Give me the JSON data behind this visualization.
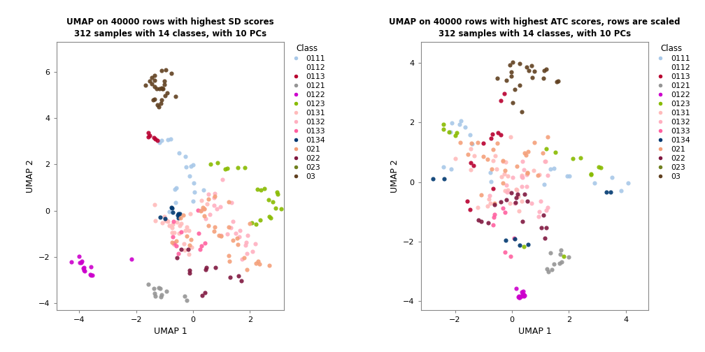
{
  "title1": "UMAP on 40000 rows with highest SD scores\n312 samples with 14 classes, with 10 PCs",
  "title2": "UMAP on 40000 rows with highest ATC scores, rows are scaled\n312 samples with 14 classes, with 10 PCs",
  "xlabel": "UMAP 1",
  "ylabel": "UMAP 2",
  "classes": [
    "0111",
    "0112",
    "0113",
    "0121",
    "0122",
    "0123",
    "0131",
    "0132",
    "0133",
    "0134",
    "021",
    "022",
    "023",
    "03"
  ],
  "colors": {
    "0111": "#A8C8E8",
    "0112": "#FFFFFF",
    "0113": "#B80030",
    "0121": "#959595",
    "0122": "#CC00CC",
    "0123": "#88BB00",
    "0131": "#FFBBBB",
    "0132": "#FFB0C0",
    "0133": "#FF60A0",
    "0134": "#003870",
    "021": "#F4A07A",
    "022": "#801840",
    "023": "#708020",
    "03": "#604020"
  },
  "plot1_xlim": [
    -4.8,
    3.2
  ],
  "plot1_ylim": [
    -4.3,
    7.3
  ],
  "plot1_xticks": [
    -4,
    -2,
    0,
    2
  ],
  "plot1_yticks": [
    -4,
    -2,
    0,
    2,
    4,
    6
  ],
  "plot2_xlim": [
    -3.2,
    4.8
  ],
  "plot2_ylim": [
    -4.3,
    4.7
  ],
  "plot2_xticks": [
    -2,
    0,
    2,
    4
  ],
  "plot2_yticks": [
    -4,
    -2,
    0,
    2,
    4
  ]
}
